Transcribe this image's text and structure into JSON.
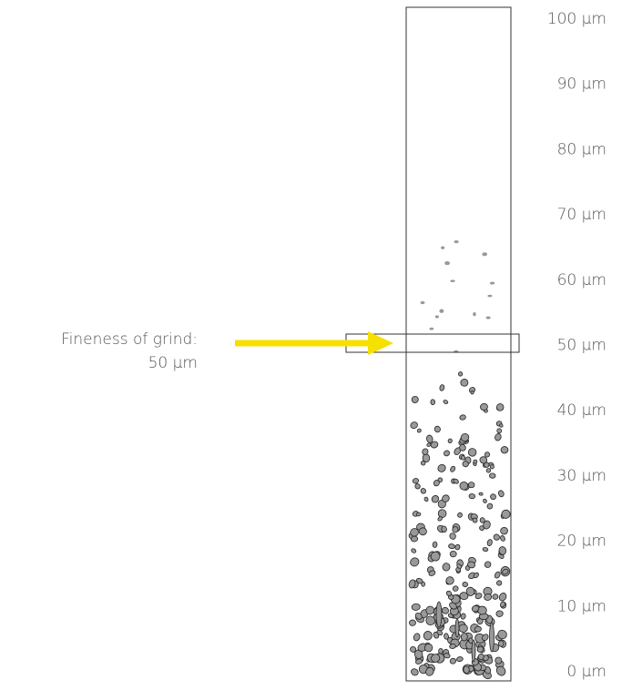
{
  "scale": {
    "labels": [
      "100 µm",
      "90 µm",
      "80 µm",
      "70 µm",
      "60 µm",
      "50 µm",
      "40 µm",
      "30 µm",
      "20 µm",
      "10 µm",
      "0 µm"
    ]
  },
  "annotation": {
    "line1": "Fineness of grind:",
    "line2": "50 µm"
  }
}
